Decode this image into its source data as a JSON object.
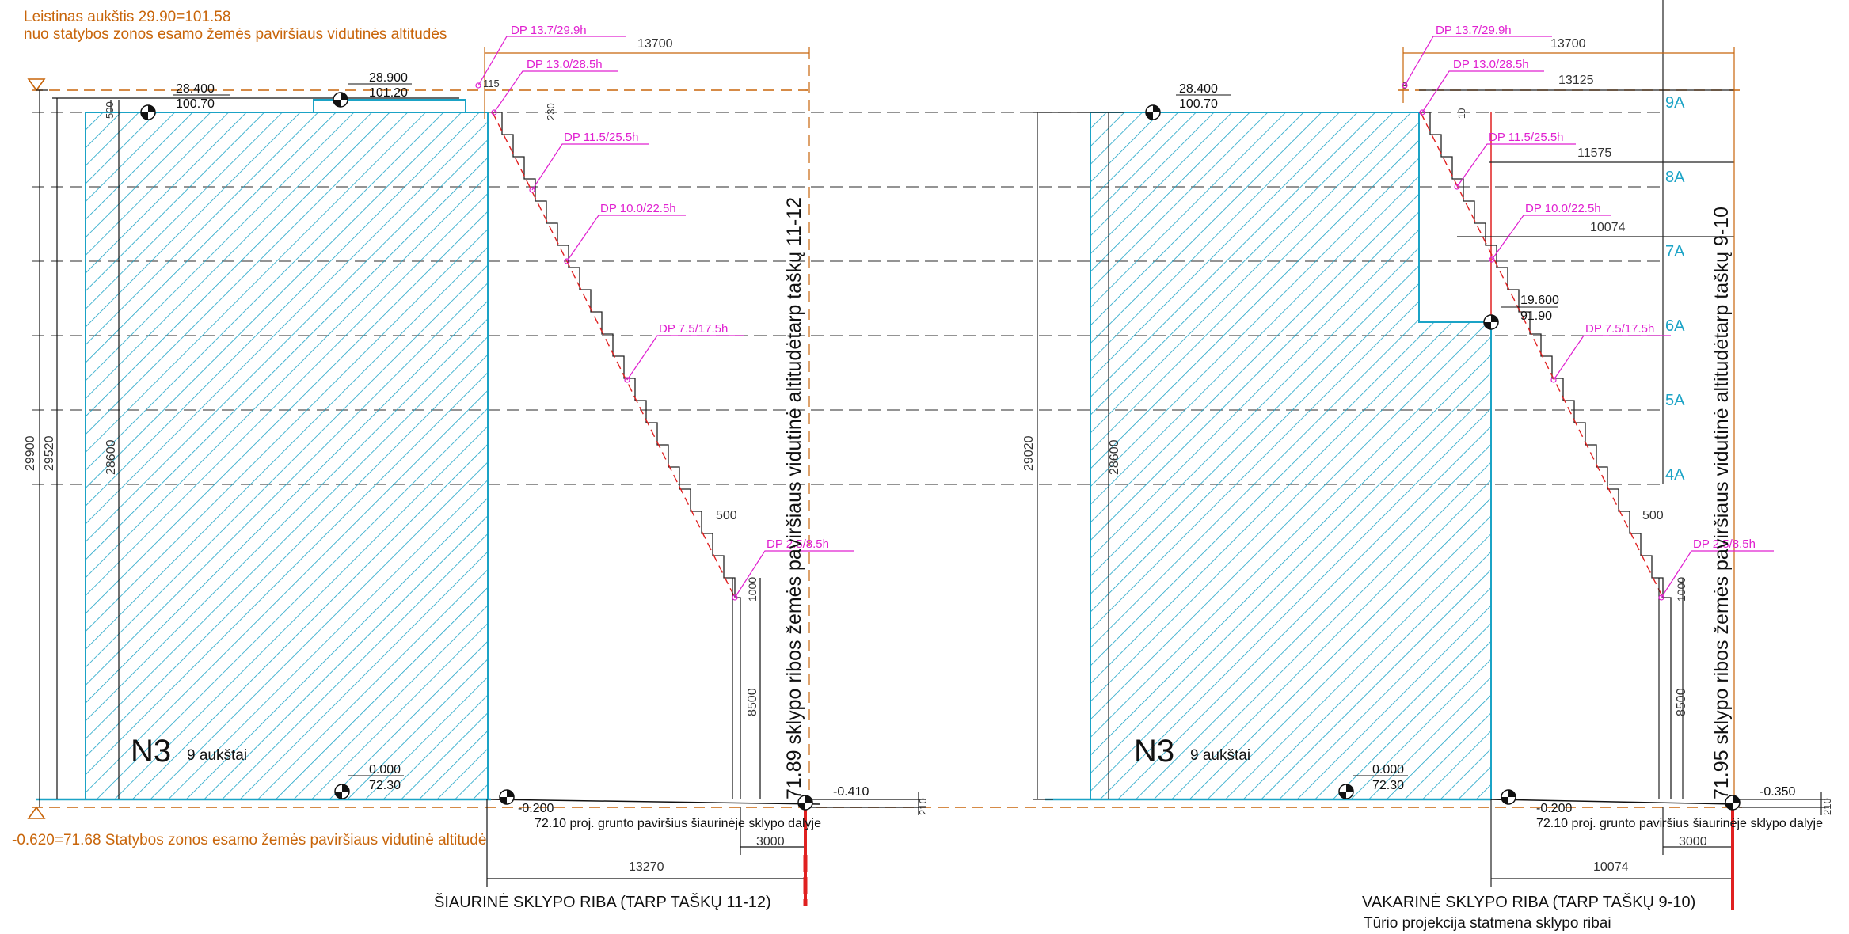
{
  "header": {
    "line1": "Leistinas aukštis 29.90=101.58",
    "line2": "nuo statybos zonos esamo žemės paviršiaus vidutinės altitudės"
  },
  "bottom_note": "-0.620=71.68 Statybos zonos esamo žemės paviršiaus vidutinė altitudė",
  "colors": {
    "orange": "#c8650a",
    "cyan": "#1ba3c6",
    "magenta": "#e020d0",
    "red": "#e02020",
    "black": "#111111",
    "grid": "#444444"
  },
  "left_view": {
    "caption": "ŠIAURINĖ SKLYPO RIBA (TARP TAŠKŲ 11-12)",
    "building_label": "N3",
    "floors_label": "9 aukštai",
    "vertical_text": "71.89 sklypo ribos žemės paviršiaus vidutinė altitudėtarp taškų 11-12",
    "elev_top_left": [
      "28.400",
      "100.70"
    ],
    "elev_top_mid": [
      "28.900",
      "101.20"
    ],
    "elev_bottom": [
      "0.000",
      "72.30"
    ],
    "elev_right": "-0.200",
    "elev_far_right": "-0.410",
    "ground_note": "72.10 proj. grunto paviršius šiaurinėje sklypo dalyje",
    "dims": {
      "total_top": "13700",
      "bottom": "13270",
      "bottom_small": "3000",
      "h_total": "29900",
      "h_2": "29520",
      "h_3": "28600",
      "top_500": "500",
      "top_115": "115",
      "top_230": "230",
      "step_500": "500",
      "step_1000": "1000",
      "h_8500": "8500",
      "dim_210": "210"
    },
    "dp_labels": [
      "DP 13.7/29.9h",
      "DP 13.0/28.5h",
      "DP 11.5/25.5h",
      "DP 10.0/22.5h",
      "DP 7.5/17.5h",
      "DP 2.5/8.5h"
    ]
  },
  "right_view": {
    "caption": "VAKARINĖ SKLYPO RIBA (TARP TAŠKŲ 9-10)",
    "caption2": "Tūrio projekcija statmena sklypo ribai",
    "building_label": "N3",
    "floors_label": "9 aukštai",
    "vertical_text": "71.95 sklypo ribos žemės paviršiaus vidutinė altitudėtarp taškų 9-10",
    "elev_top_left": [
      "28.400",
      "100.70"
    ],
    "elev_step": [
      "19.600",
      "91.90"
    ],
    "elev_bottom": [
      "0.000",
      "72.30"
    ],
    "elev_right": "-0.200",
    "elev_far_right": "-0.350",
    "ground_note": "72.10 proj. grunto paviršius šiaurinėje sklypo dalyje",
    "dims": {
      "total_top": "13700",
      "d_13125": "13125",
      "d_11575": "11575",
      "d_10074": "10074",
      "bottom": "10074",
      "bottom_small": "3000",
      "h_total": "29020",
      "h_3": "28600",
      "top_9": "9",
      "top_10": "10",
      "step_500": "500",
      "step_1000": "1000",
      "h_8500": "8500",
      "dim_210": "210"
    },
    "floor_labels": [
      "9A",
      "8A",
      "7A",
      "6A",
      "5A",
      "4A"
    ],
    "dp_labels": [
      "DP 13.7/29.9h",
      "DP 13.0/28.5h",
      "DP 11.5/25.5h",
      "DP 10.0/22.5h",
      "DP 7.5/17.5h",
      "DP 2.5/8.5h"
    ]
  }
}
